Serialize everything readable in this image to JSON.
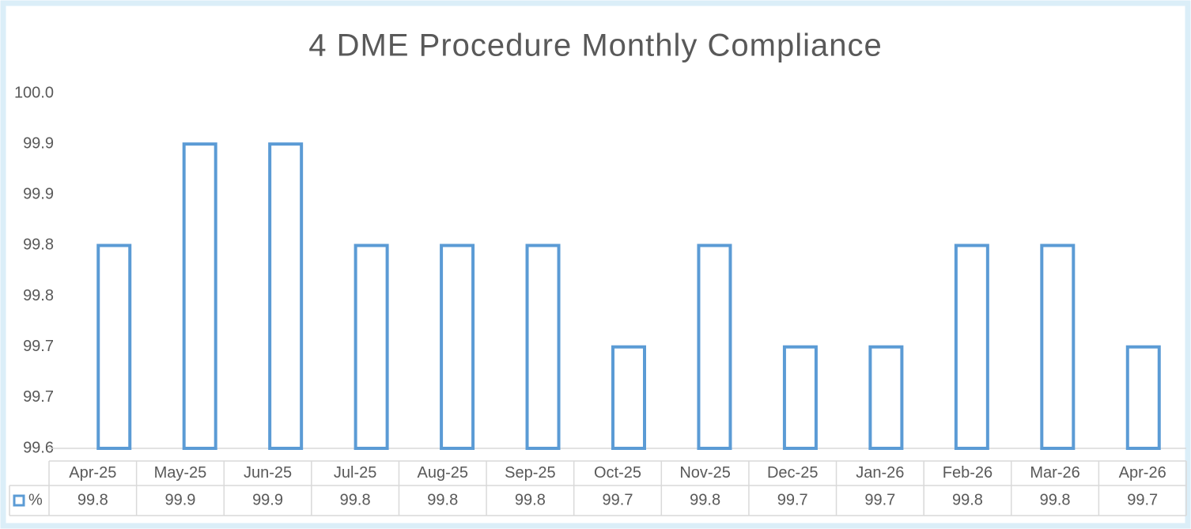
{
  "chart_data": {
    "type": "bar",
    "title": "4 DME Procedure Monthly Compliance",
    "categories": [
      "Apr-25",
      "May-25",
      "Jun-25",
      "Jul-25",
      "Aug-25",
      "Sep-25",
      "Oct-25",
      "Nov-25",
      "Dec-25",
      "Jan-26",
      "Feb-26",
      "Mar-26",
      "Apr-26"
    ],
    "series": [
      {
        "name": "%",
        "color": "#5b9bd5",
        "values": [
          99.8,
          99.9,
          99.9,
          99.8,
          99.8,
          99.8,
          99.7,
          99.8,
          99.7,
          99.7,
          99.8,
          99.8,
          99.7
        ]
      }
    ],
    "ylim": [
      99.6,
      99.95
    ],
    "yticks": [
      99.6,
      {
        "value": 99.65,
        "label": "99.7"
      },
      99.7,
      {
        "value": 99.75,
        "label": "99.8"
      },
      99.8,
      {
        "value": 99.85,
        "label": "99.9"
      },
      99.9,
      {
        "value": 99.95,
        "label": "100.0"
      }
    ],
    "grid": false,
    "data_table": true
  }
}
